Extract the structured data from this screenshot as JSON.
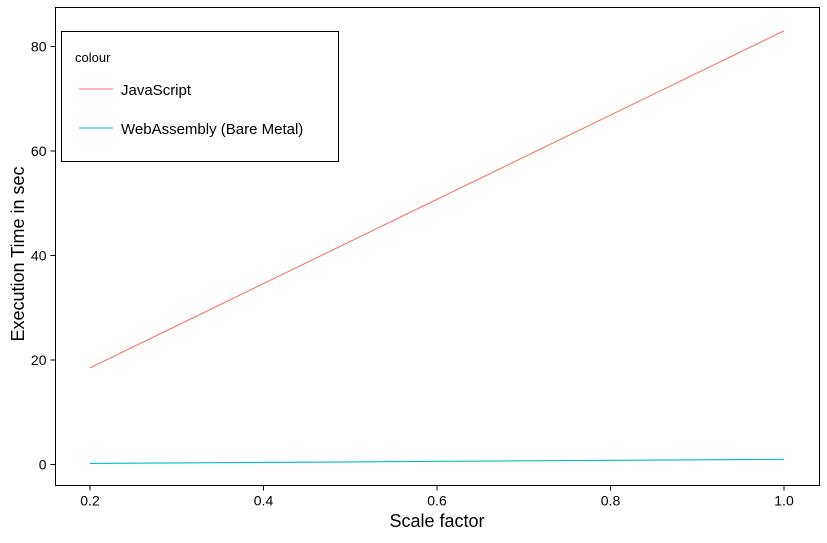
{
  "chart_data": {
    "type": "line",
    "xlabel": "Scale factor",
    "ylabel": "Execution Time in sec",
    "xlim": [
      0.2,
      1.0
    ],
    "ylim": [
      0,
      80
    ],
    "xticks": [
      0.2,
      0.4,
      0.6,
      0.8,
      1.0
    ],
    "xtick_labels": [
      "0.2",
      "0.4",
      "0.6",
      "0.8",
      "1.0"
    ],
    "yticks": [
      0,
      20,
      40,
      60,
      80
    ],
    "ytick_labels": [
      "0",
      "20",
      "40",
      "60",
      "80"
    ],
    "grid": false,
    "legend": {
      "title": "colour",
      "placement": "top-left"
    },
    "series": [
      {
        "name": "JavaScript",
        "color": "#F8766D",
        "x": [
          0.2,
          1.0
        ],
        "values": [
          18.5,
          83
        ]
      },
      {
        "name": "WebAssembly (Bare Metal)",
        "color": "#00BFC4",
        "x": [
          0.2,
          0.3,
          0.5,
          0.7,
          0.9,
          1.0
        ],
        "values": [
          0.2,
          0.3,
          0.5,
          0.7,
          0.9,
          1.0
        ]
      }
    ]
  }
}
